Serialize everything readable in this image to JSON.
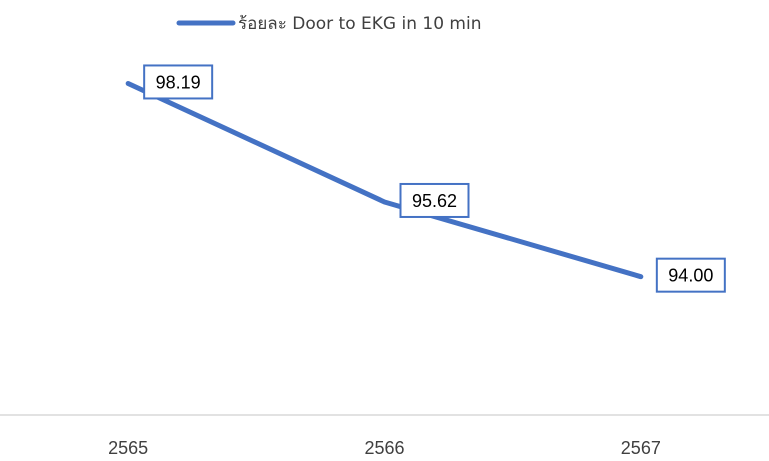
{
  "chart_data": {
    "type": "line",
    "title": "",
    "xlabel": "",
    "ylabel": "",
    "categories": [
      "2565",
      "2566",
      "2567"
    ],
    "series": [
      {
        "name": "ร้อยละ Door to EKG in 10 min",
        "values": [
          98.19,
          95.62,
          94.0
        ],
        "labels": [
          "98.19",
          "95.62",
          "94.00"
        ],
        "color": "#4472C4"
      }
    ],
    "ylim": [
      91.0,
      100.0
    ],
    "grid": false,
    "legend_position": "top",
    "axis_line_color": "#D9D9D9",
    "label_border_color": "#4472C4"
  }
}
